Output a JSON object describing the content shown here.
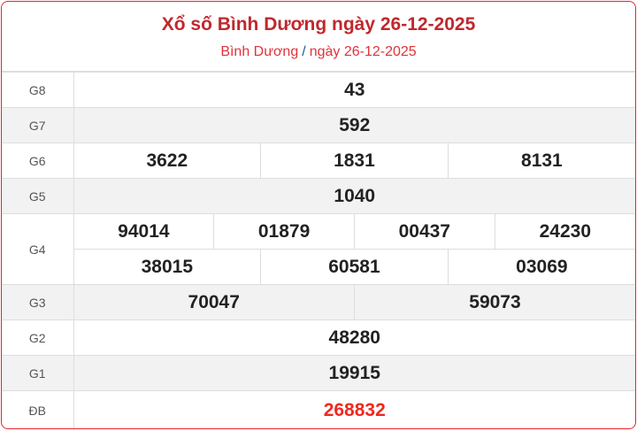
{
  "header": {
    "title": "Xổ số Bình Dương ngày 26-12-2025",
    "breadcrumb": {
      "province": "Bình Dương",
      "separator": "/",
      "date": "ngày 26-12-2025"
    }
  },
  "prizes": [
    {
      "label": "G8",
      "numbers": [
        "43"
      ]
    },
    {
      "label": "G7",
      "numbers": [
        "592"
      ]
    },
    {
      "label": "G6",
      "numbers": [
        "3622",
        "1831",
        "8131"
      ]
    },
    {
      "label": "G5",
      "numbers": [
        "1040"
      ]
    },
    {
      "label": "G4",
      "numbers": [
        "94014",
        "01879",
        "00437",
        "24230",
        "38015",
        "60581",
        "03069"
      ]
    },
    {
      "label": "G3",
      "numbers": [
        "70047",
        "59073"
      ]
    },
    {
      "label": "G2",
      "numbers": [
        "48280"
      ]
    },
    {
      "label": "G1",
      "numbers": [
        "19915"
      ]
    },
    {
      "label": "ĐB",
      "numbers": [
        "268832"
      ]
    }
  ],
  "colors": {
    "title": "#c0282d",
    "special": "#f0281e",
    "border": "#e8242c"
  }
}
